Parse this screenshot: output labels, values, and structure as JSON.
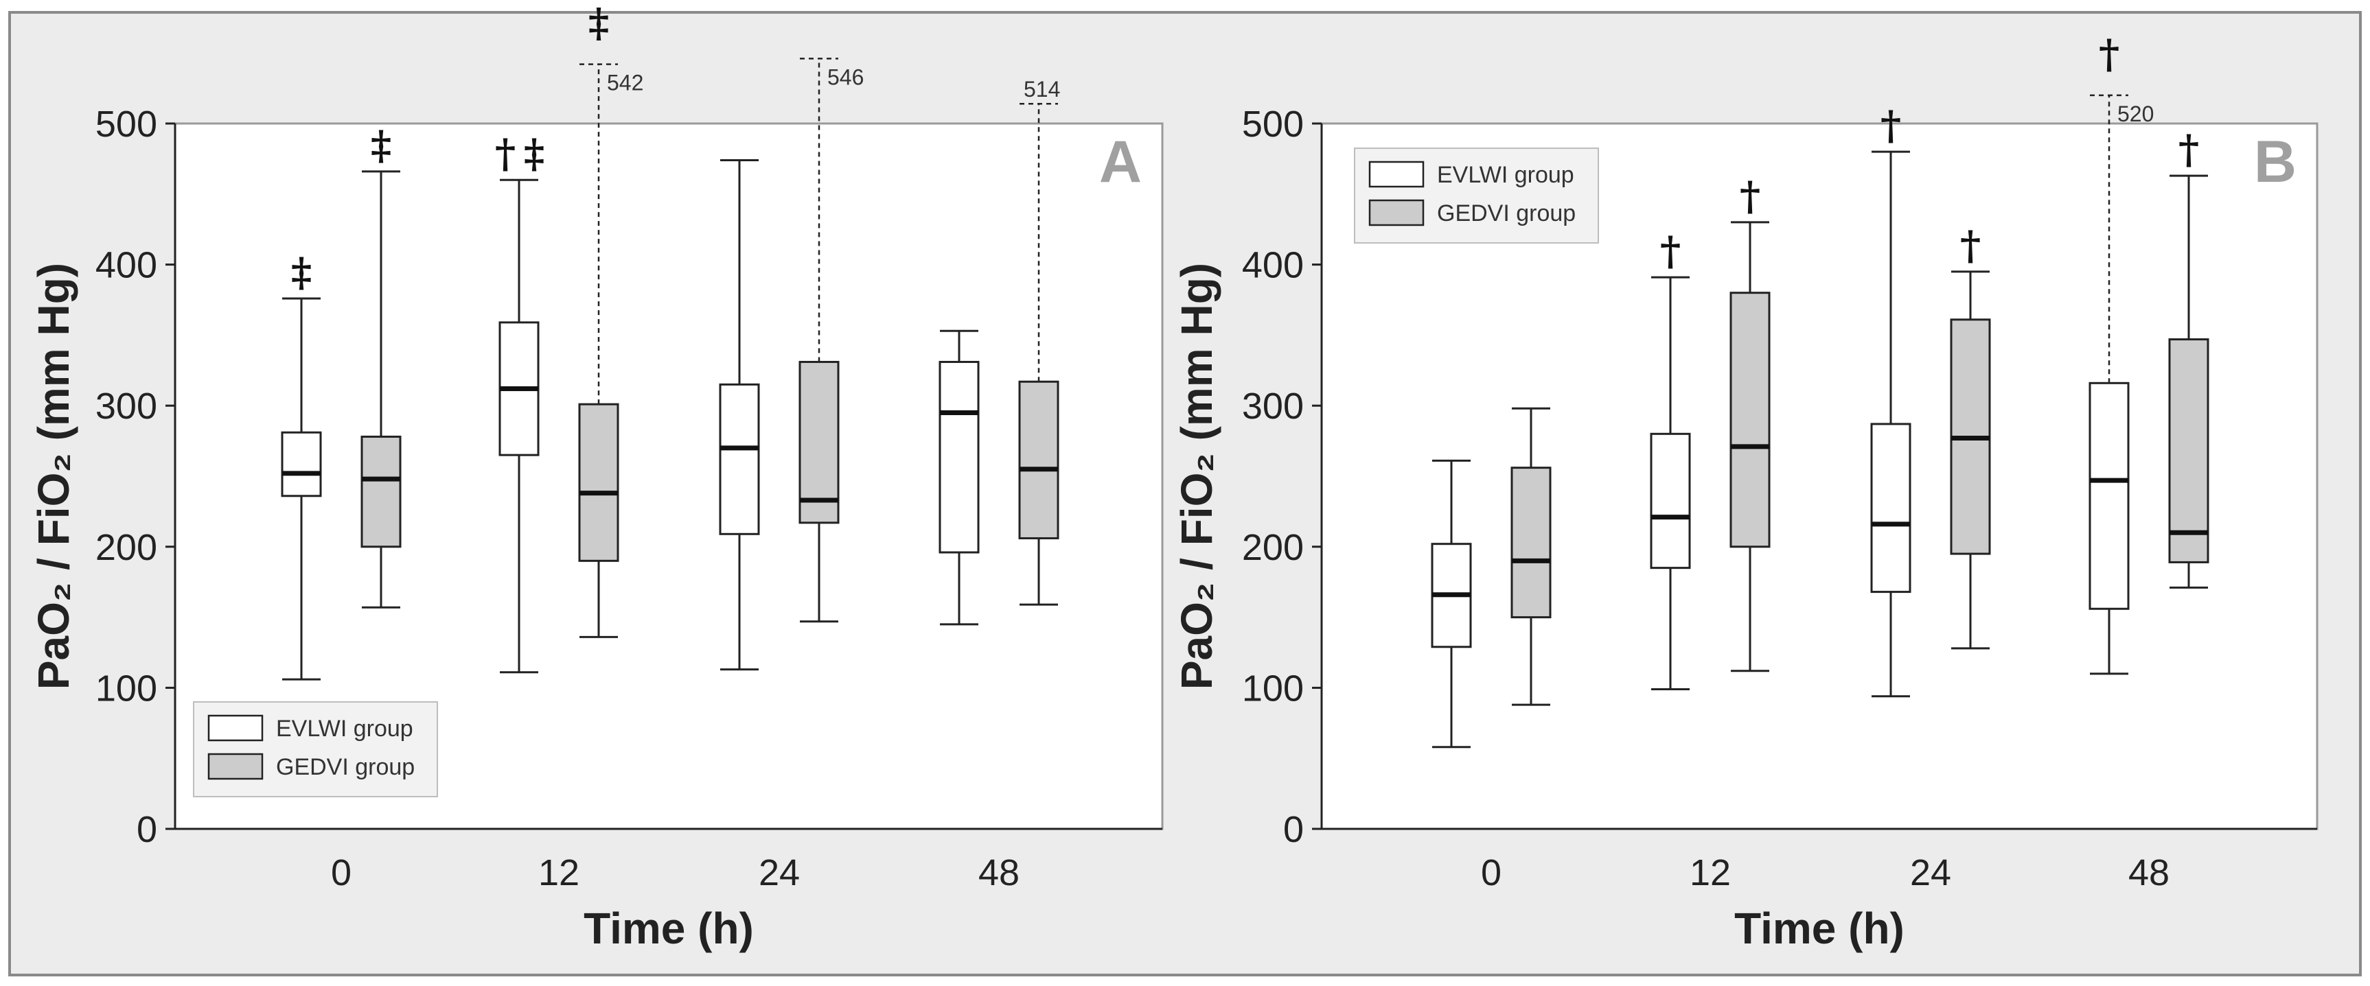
{
  "figure": {
    "background": "#ececec",
    "box_colors": {
      "EVLWI group": "#ffffff",
      "GEDVI group": "#cccccc"
    },
    "line_color": "#222222"
  },
  "chart_data": [
    {
      "type": "boxplot",
      "panel": "A",
      "ylabel": "PaO₂ / FiO₂ (mm Hg)",
      "xlabel": "Time (h)",
      "categories": [
        "0",
        "12",
        "24",
        "48"
      ],
      "yticks": [
        0,
        100,
        200,
        300,
        400,
        500
      ],
      "ylim": [
        0,
        500
      ],
      "legend": {
        "position": "bottom-left",
        "entries": [
          "EVLWI group",
          "GEDVI group"
        ]
      },
      "series": [
        {
          "name": "EVLWI group",
          "boxes": [
            {
              "category": "0",
              "min": 106,
              "q1": 236,
              "median": 252,
              "q3": 281,
              "max": 376,
              "symbol": "‡"
            },
            {
              "category": "12",
              "min": 111,
              "q1": 265,
              "median": 312,
              "q3": 359,
              "max": 460,
              "symbol": "†‡"
            },
            {
              "category": "24",
              "min": 113,
              "q1": 209,
              "median": 270,
              "q3": 315,
              "max": 474
            },
            {
              "category": "48",
              "min": 145,
              "q1": 196,
              "median": 295,
              "q3": 331,
              "max": 353
            }
          ]
        },
        {
          "name": "GEDVI group",
          "boxes": [
            {
              "category": "0",
              "min": 157,
              "q1": 200,
              "median": 248,
              "q3": 278,
              "max": 466,
              "symbol": "‡"
            },
            {
              "category": "12",
              "min": 136,
              "q1": 190,
              "median": 238,
              "q3": 301,
              "max": 542,
              "max_label": "542",
              "symbol": "‡"
            },
            {
              "category": "24",
              "min": 147,
              "q1": 217,
              "median": 233,
              "q3": 331,
              "max": 546,
              "max_label": "546"
            },
            {
              "category": "48",
              "min": 159,
              "q1": 206,
              "median": 255,
              "q3": 317,
              "max": 514,
              "max_label": "514"
            }
          ]
        }
      ]
    },
    {
      "type": "boxplot",
      "panel": "B",
      "ylabel": "PaO₂ / FiO₂ (mm Hg)",
      "xlabel": "Time (h)",
      "categories": [
        "0",
        "12",
        "24",
        "48"
      ],
      "yticks": [
        0,
        100,
        200,
        300,
        400,
        500
      ],
      "ylim": [
        0,
        500
      ],
      "legend": {
        "position": "top-left",
        "entries": [
          "EVLWI group",
          "GEDVI group"
        ]
      },
      "series": [
        {
          "name": "EVLWI group",
          "boxes": [
            {
              "category": "0",
              "min": 58,
              "q1": 129,
              "median": 166,
              "q3": 202,
              "max": 261
            },
            {
              "category": "12",
              "min": 99,
              "q1": 185,
              "median": 221,
              "q3": 280,
              "max": 391,
              "symbol": "†"
            },
            {
              "category": "24",
              "min": 94,
              "q1": 168,
              "median": 216,
              "q3": 287,
              "max": 480,
              "symbol": "†"
            },
            {
              "category": "48",
              "min": 110,
              "q1": 156,
              "median": 247,
              "q3": 316,
              "max": 520,
              "max_label": "520",
              "symbol": "†"
            }
          ]
        },
        {
          "name": "GEDVI group",
          "boxes": [
            {
              "category": "0",
              "min": 88,
              "q1": 150,
              "median": 190,
              "q3": 256,
              "max": 298
            },
            {
              "category": "12",
              "min": 112,
              "q1": 200,
              "median": 271,
              "q3": 380,
              "max": 430,
              "symbol": "†"
            },
            {
              "category": "24",
              "min": 128,
              "q1": 195,
              "median": 277,
              "q3": 361,
              "max": 395,
              "symbol": "†"
            },
            {
              "category": "48",
              "min": 171,
              "q1": 189,
              "median": 210,
              "q3": 347,
              "max": 463,
              "symbol": "†"
            }
          ]
        }
      ]
    }
  ]
}
